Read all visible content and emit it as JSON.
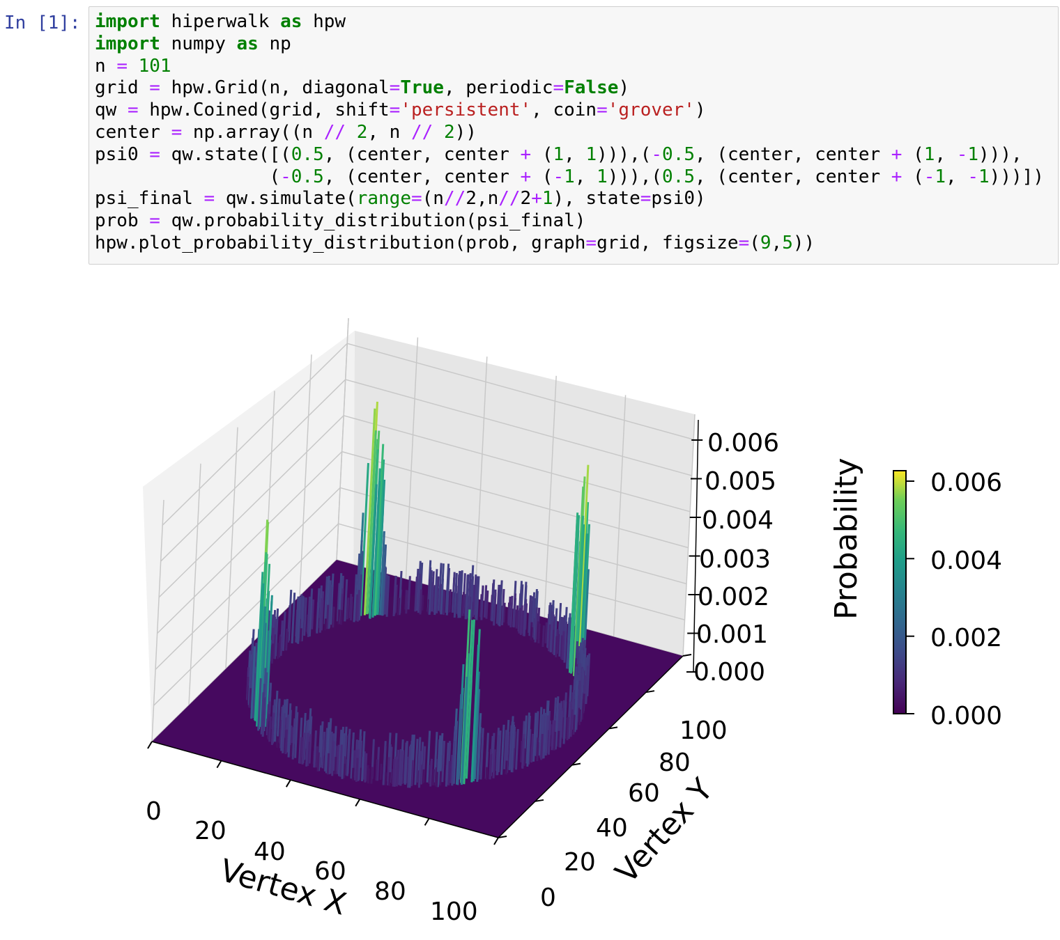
{
  "cell": {
    "prompt": "In [1]:",
    "lines": [
      [
        {
          "t": "import",
          "c": "kw"
        },
        {
          "t": " hiperwalk "
        },
        {
          "t": "as",
          "c": "kw"
        },
        {
          "t": " hpw"
        }
      ],
      [
        {
          "t": "import",
          "c": "kw"
        },
        {
          "t": " numpy "
        },
        {
          "t": "as",
          "c": "kw"
        },
        {
          "t": " np"
        }
      ],
      [
        {
          "t": "n "
        },
        {
          "t": "=",
          "c": "op"
        },
        {
          "t": " "
        },
        {
          "t": "101",
          "c": "num"
        }
      ],
      [
        {
          "t": "grid "
        },
        {
          "t": "=",
          "c": "op"
        },
        {
          "t": " hpw.Grid(n, diagonal"
        },
        {
          "t": "=",
          "c": "op"
        },
        {
          "t": "True",
          "c": "kw"
        },
        {
          "t": ", periodic"
        },
        {
          "t": "=",
          "c": "op"
        },
        {
          "t": "False",
          "c": "kw"
        },
        {
          "t": ")"
        }
      ],
      [
        {
          "t": "qw "
        },
        {
          "t": "=",
          "c": "op"
        },
        {
          "t": " hpw.Coined(grid, shift"
        },
        {
          "t": "=",
          "c": "op"
        },
        {
          "t": "'persistent'",
          "c": "str"
        },
        {
          "t": ", coin"
        },
        {
          "t": "=",
          "c": "op"
        },
        {
          "t": "'grover'",
          "c": "str"
        },
        {
          "t": ")"
        }
      ],
      [
        {
          "t": "center "
        },
        {
          "t": "=",
          "c": "op"
        },
        {
          "t": " np.array((n "
        },
        {
          "t": "//",
          "c": "op"
        },
        {
          "t": " "
        },
        {
          "t": "2",
          "c": "num"
        },
        {
          "t": ", n "
        },
        {
          "t": "//",
          "c": "op"
        },
        {
          "t": " "
        },
        {
          "t": "2",
          "c": "num"
        },
        {
          "t": "))"
        }
      ],
      [
        {
          "t": "psi0 "
        },
        {
          "t": "=",
          "c": "op"
        },
        {
          "t": " qw.state([("
        },
        {
          "t": "0.5",
          "c": "num"
        },
        {
          "t": ", (center, center "
        },
        {
          "t": "+",
          "c": "op"
        },
        {
          "t": " ("
        },
        {
          "t": "1",
          "c": "num"
        },
        {
          "t": ", "
        },
        {
          "t": "1",
          "c": "num"
        },
        {
          "t": "))),("
        },
        {
          "t": "-",
          "c": "op"
        },
        {
          "t": "0.5",
          "c": "num"
        },
        {
          "t": ", (center, center "
        },
        {
          "t": "+",
          "c": "op"
        },
        {
          "t": " ("
        },
        {
          "t": "1",
          "c": "num"
        },
        {
          "t": ", "
        },
        {
          "t": "-",
          "c": "op"
        },
        {
          "t": "1",
          "c": "num"
        },
        {
          "t": "))),"
        }
      ],
      [
        {
          "t": "                ("
        },
        {
          "t": "-",
          "c": "op"
        },
        {
          "t": "0.5",
          "c": "num"
        },
        {
          "t": ", (center, center "
        },
        {
          "t": "+",
          "c": "op"
        },
        {
          "t": " ("
        },
        {
          "t": "-",
          "c": "op"
        },
        {
          "t": "1",
          "c": "num"
        },
        {
          "t": ", "
        },
        {
          "t": "1",
          "c": "num"
        },
        {
          "t": "))),("
        },
        {
          "t": "0.5",
          "c": "num"
        },
        {
          "t": ", (center, center "
        },
        {
          "t": "+",
          "c": "op"
        },
        {
          "t": " ("
        },
        {
          "t": "-",
          "c": "op"
        },
        {
          "t": "1",
          "c": "num"
        },
        {
          "t": ", "
        },
        {
          "t": "-",
          "c": "op"
        },
        {
          "t": "1",
          "c": "num"
        },
        {
          "t": ")))])"
        }
      ],
      [
        {
          "t": "psi_final "
        },
        {
          "t": "=",
          "c": "op"
        },
        {
          "t": " qw.simulate("
        },
        {
          "t": "range",
          "c": "num"
        },
        {
          "t": "=",
          "c": "op"
        },
        {
          "t": "(n"
        },
        {
          "t": "//",
          "c": "op"
        },
        {
          "t": "2,n"
        },
        {
          "t": "//",
          "c": "op"
        },
        {
          "t": "2"
        },
        {
          "t": "+",
          "c": "op"
        },
        {
          "t": "1",
          "c": "num"
        },
        {
          "t": "), state"
        },
        {
          "t": "=",
          "c": "op"
        },
        {
          "t": "psi0)"
        }
      ],
      [
        {
          "t": "prob "
        },
        {
          "t": "=",
          "c": "op"
        },
        {
          "t": " qw.probability_distribution(psi_final)"
        }
      ],
      [
        {
          "t": "hpw.plot_probability_distribution(prob, graph"
        },
        {
          "t": "=",
          "c": "op"
        },
        {
          "t": "grid, figsize"
        },
        {
          "t": "=",
          "c": "op"
        },
        {
          "t": "("
        },
        {
          "t": "9",
          "c": "num"
        },
        {
          "t": ","
        },
        {
          "t": "5",
          "c": "num"
        },
        {
          "t": "))"
        }
      ]
    ]
  },
  "chart_data": {
    "type": "surface",
    "title": "",
    "xlabel": "Vertex X",
    "ylabel": "Vertex Y",
    "zlabel": "Probability",
    "x_ticks": [
      "0",
      "20",
      "40",
      "60",
      "80",
      "100"
    ],
    "y_ticks": [
      "0",
      "20",
      "40",
      "60",
      "80",
      "100"
    ],
    "z_ticks": [
      "0.000",
      "0.001",
      "0.002",
      "0.003",
      "0.004",
      "0.005",
      "0.006"
    ],
    "xlim": [
      0,
      100
    ],
    "ylim": [
      0,
      100
    ],
    "zlim": [
      0,
      0.006
    ],
    "colormap": "viridis",
    "colorbar_ticks": [
      "0.000",
      "0.002",
      "0.004",
      "0.006"
    ],
    "peaks": [
      {
        "x": 20,
        "y": 80,
        "value": 0.0063
      },
      {
        "x": 80,
        "y": 80,
        "value": 0.0067
      },
      {
        "x": 20,
        "y": 20,
        "value": 0.0057
      },
      {
        "x": 80,
        "y": 20,
        "value": 0.0058
      }
    ],
    "ring_level": 0.0008
  },
  "colors": {
    "viridis_low": "#440154",
    "viridis_mid": "#21918c",
    "viridis_high": "#fde725",
    "prompt": "#303f9f"
  }
}
